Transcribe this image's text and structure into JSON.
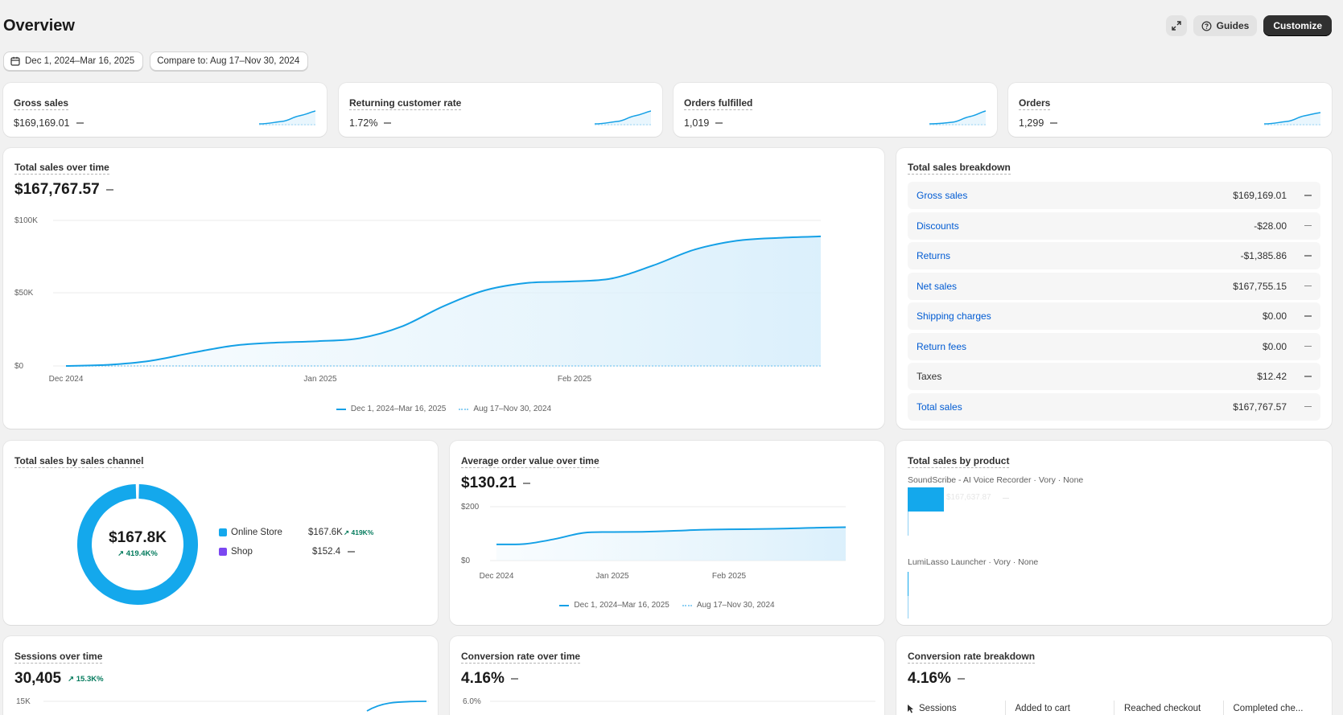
{
  "header": {
    "title": "Overview",
    "guides_label": "Guides",
    "customize_label": "Customize"
  },
  "filters": {
    "date_range": "Dec 1, 2024–Mar 16, 2025",
    "compare": "Compare to: Aug 17–Nov 30, 2024"
  },
  "kpis": [
    {
      "title": "Gross sales",
      "value": "$169,169.01"
    },
    {
      "title": "Returning customer rate",
      "value": "1.72%"
    },
    {
      "title": "Orders fulfilled",
      "value": "1,019"
    },
    {
      "title": "Orders",
      "value": "1,299"
    }
  ],
  "total_sales": {
    "title": "Total sales over time",
    "value": "$167,767.57",
    "legend_current": "Dec 1, 2024–Mar 16, 2025",
    "legend_compare": "Aug 17–Nov 30, 2024"
  },
  "breakdown": {
    "title": "Total sales breakdown",
    "rows": [
      {
        "label": "Gross sales",
        "value": "$169,169.01",
        "link": true
      },
      {
        "label": "Discounts",
        "value": "-$28.00",
        "link": true
      },
      {
        "label": "Returns",
        "value": "-$1,385.86",
        "link": true
      },
      {
        "label": "Net sales",
        "value": "$167,755.15",
        "link": true
      },
      {
        "label": "Shipping charges",
        "value": "$0.00",
        "link": true
      },
      {
        "label": "Return fees",
        "value": "$0.00",
        "link": true
      },
      {
        "label": "Taxes",
        "value": "$12.42",
        "link": false
      },
      {
        "label": "Total sales",
        "value": "$167,767.57",
        "link": true
      }
    ]
  },
  "channel": {
    "title": "Total sales by sales channel",
    "center_value": "$167.8K",
    "center_change": "419.4K%",
    "items": [
      {
        "name": "Online Store",
        "value": "$167.6K",
        "change": "419K%",
        "color": "#14a8ec"
      },
      {
        "name": "Shop",
        "value": "$152.4",
        "change": "",
        "color": "#7b47f1"
      }
    ]
  },
  "aov": {
    "title": "Average order value over time",
    "value": "$130.21",
    "legend_current": "Dec 1, 2024–Mar 16, 2025",
    "legend_compare": "Aug 17–Nov 30, 2024"
  },
  "product": {
    "title": "Total sales by product",
    "items": [
      {
        "name": "SoundScribe - AI Voice Recorder · Vory · None",
        "value": "$167,637.87"
      },
      {
        "name": "LumiLasso Launcher · Vory · None",
        "value": ""
      }
    ]
  },
  "sessions": {
    "title": "Sessions over time",
    "value": "30,405",
    "change": "15.3K%"
  },
  "conversion": {
    "title": "Conversion rate over time",
    "value": "4.16%"
  },
  "conv_breakdown": {
    "title": "Conversion rate breakdown",
    "value": "4.16%",
    "columns": [
      "Sessions",
      "Added to cart",
      "Reached checkout",
      "Completed che..."
    ]
  },
  "chart_data": [
    {
      "type": "area",
      "title": "Total sales over time",
      "categories_ticks": [
        "Dec 2024",
        "Jan 2025",
        "Feb 2025"
      ],
      "y_ticks": [
        "$0",
        "$50K",
        "$100K"
      ],
      "ylim": [
        0,
        100000
      ],
      "series": [
        {
          "name": "Dec 1, 2024–Mar 16, 2025",
          "values": [
            0,
            800,
            3500,
            9000,
            14000,
            16000,
            17000,
            19000,
            27000,
            41000,
            52000,
            57000,
            58000,
            60000,
            69000,
            80000,
            86000,
            88000,
            89000
          ]
        },
        {
          "name": "Aug 17–Nov 30, 2024",
          "values": [
            0,
            0,
            0,
            0,
            0,
            0,
            0,
            0,
            0,
            0,
            0,
            0,
            0,
            0,
            0,
            0,
            0,
            0,
            0
          ]
        }
      ]
    },
    {
      "type": "pie",
      "title": "Total sales by sales channel",
      "categories": [
        "Online Store",
        "Shop"
      ],
      "values": [
        167600,
        152.4
      ]
    },
    {
      "type": "area",
      "title": "Average order value over time",
      "categories_ticks": [
        "Dec 2024",
        "Jan 2025",
        "Feb 2025"
      ],
      "y_ticks": [
        "$0",
        "$200"
      ],
      "ylim": [
        0,
        200
      ],
      "series": [
        {
          "name": "Dec 1, 2024–Mar 16, 2025",
          "values": [
            60,
            62,
            80,
            103,
            106,
            107,
            110,
            114,
            116,
            117,
            119,
            122,
            124
          ]
        },
        {
          "name": "Aug 17–Nov 30, 2024",
          "values": []
        }
      ]
    },
    {
      "type": "bar",
      "title": "Total sales by product",
      "categories": [
        "SoundScribe - AI Voice Recorder · Vory · None",
        "LumiLasso Launcher · Vory · None"
      ],
      "values": [
        167637.87,
        0
      ]
    },
    {
      "type": "line",
      "title": "Sessions over time",
      "y_ticks": [
        "15K"
      ]
    },
    {
      "type": "line",
      "title": "Conversion rate over time",
      "y_ticks": [
        "6.0%"
      ]
    }
  ]
}
